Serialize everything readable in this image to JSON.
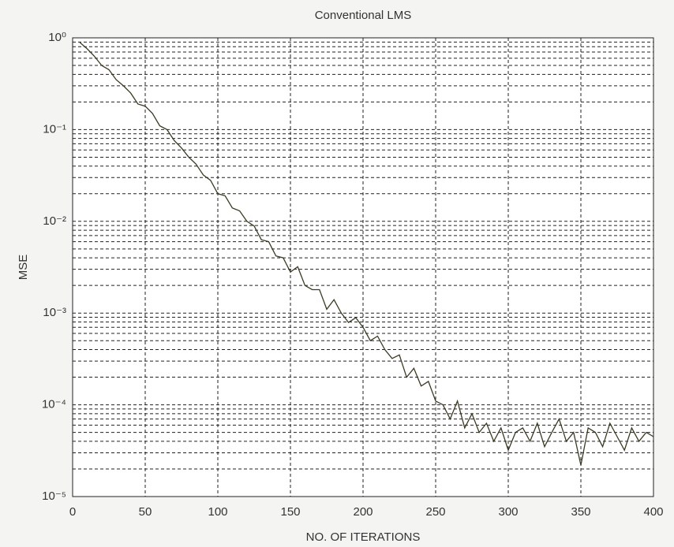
{
  "chart_data": {
    "type": "line",
    "title": "Conventional LMS",
    "xlabel": "NO. OF ITERATIONS",
    "ylabel": "MSE",
    "log_y": true,
    "grid": true,
    "color": "#3b3a22",
    "xlim": [
      0,
      400
    ],
    "xticks": [
      0,
      50,
      100,
      150,
      200,
      250,
      300,
      350,
      400
    ],
    "ylim": [
      1e-05,
      1
    ],
    "yticks": [
      {
        "value": 1e-05,
        "label": "10⁻⁵"
      },
      {
        "value": 0.0001,
        "label": "10⁻⁴"
      },
      {
        "value": 0.001,
        "label": "10⁻³"
      },
      {
        "value": 0.01,
        "label": "10⁻²"
      },
      {
        "value": 0.1,
        "label": "10⁻¹"
      },
      {
        "value": 1,
        "label": "10⁰"
      }
    ],
    "y_minor_ticks": [
      2e-05,
      3e-05,
      4e-05,
      5e-05,
      6e-05,
      7e-05,
      8e-05,
      9e-05,
      0.0002,
      0.0003,
      0.0004,
      0.0005,
      0.0006,
      0.0007,
      0.0008,
      0.0009,
      0.002,
      0.003,
      0.004,
      0.005,
      0.006,
      0.007,
      0.008,
      0.009,
      0.02,
      0.03,
      0.04,
      0.05,
      0.06,
      0.07,
      0.08,
      0.09,
      0.2,
      0.3,
      0.4,
      0.5,
      0.6,
      0.7,
      0.8,
      0.9
    ],
    "x": [
      5,
      10,
      15,
      20,
      25,
      30,
      35,
      40,
      45,
      50,
      55,
      60,
      65,
      70,
      75,
      80,
      85,
      90,
      95,
      100,
      105,
      110,
      115,
      120,
      125,
      130,
      135,
      140,
      145,
      150,
      155,
      160,
      165,
      170,
      175,
      180,
      185,
      190,
      195,
      200,
      205,
      210,
      215,
      220,
      225,
      230,
      235,
      240,
      245,
      250,
      255,
      260,
      265,
      270,
      275,
      280,
      285,
      290,
      295,
      300,
      305,
      310,
      315,
      320,
      325,
      330,
      335,
      340,
      345,
      350,
      355,
      360,
      365,
      370,
      375,
      380,
      385,
      390,
      395,
      400
    ],
    "values": [
      0.89,
      0.76,
      0.63,
      0.5,
      0.45,
      0.35,
      0.3,
      0.25,
      0.19,
      0.18,
      0.15,
      0.11,
      0.1,
      0.076,
      0.063,
      0.05,
      0.042,
      0.032,
      0.028,
      0.02,
      0.019,
      0.014,
      0.013,
      0.01,
      0.0089,
      0.0063,
      0.006,
      0.0042,
      0.004,
      0.0028,
      0.0032,
      0.002,
      0.0018,
      0.0018,
      0.0011,
      0.0014,
      0.001,
      0.00079,
      0.00089,
      0.0007,
      0.0005,
      0.00056,
      0.0004,
      0.00032,
      0.00035,
      0.0002,
      0.00025,
      0.00016,
      0.00018,
      0.00011,
      0.0001,
      7e-05,
      0.00011,
      5.6e-05,
      8e-05,
      5e-05,
      6.3e-05,
      4e-05,
      5.6e-05,
      3.2e-05,
      5e-05,
      5.6e-05,
      4e-05,
      6.3e-05,
      3.5e-05,
      5e-05,
      7e-05,
      4e-05,
      5e-05,
      2.2e-05,
      5.6e-05,
      5e-05,
      3.5e-05,
      6.3e-05,
      4.5e-05,
      3.2e-05,
      5.6e-05,
      4e-05,
      5e-05,
      4.5e-05
    ]
  }
}
